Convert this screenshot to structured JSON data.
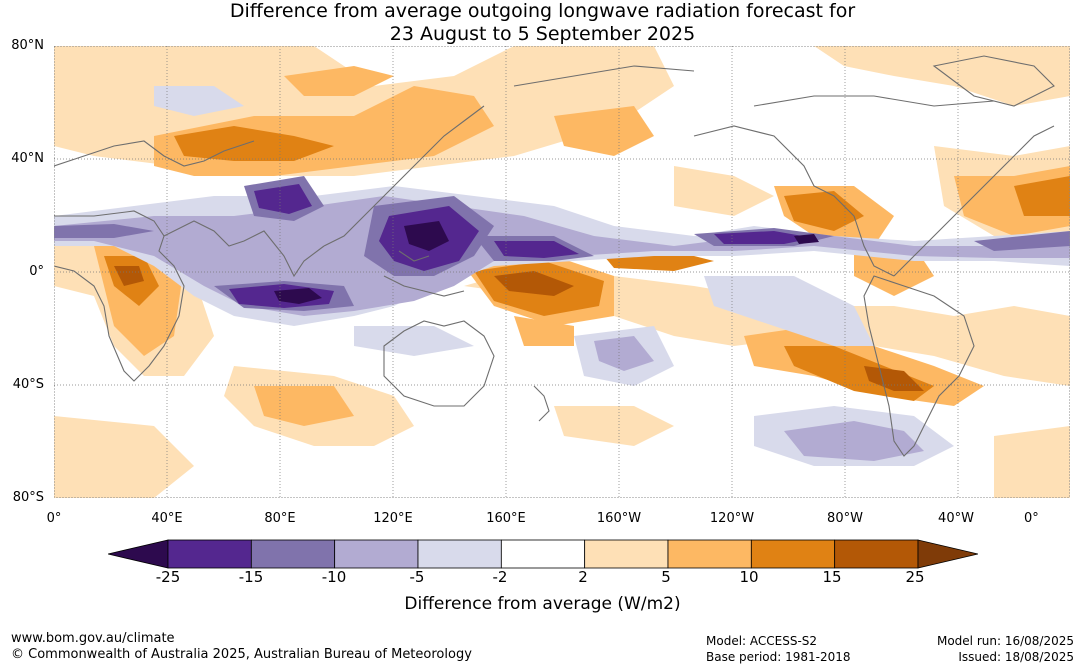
{
  "title": {
    "line1": "Difference from average outgoing longwave radiation forecast for",
    "line2": "23 August to 5 September 2025"
  },
  "axes": {
    "lat_labels": [
      "80°N",
      "40°N",
      "0°",
      "40°S",
      "80°S"
    ],
    "lon_labels": [
      "0°",
      "40°E",
      "80°E",
      "120°E",
      "160°E",
      "160°W",
      "120°W",
      "80°W",
      "40°W",
      "0°"
    ]
  },
  "colorbar": {
    "title": "Difference from average (W/m2)",
    "ticks": [
      "-25",
      "-15",
      "-10",
      "-5",
      "-2",
      "2",
      "5",
      "10",
      "15",
      "25"
    ],
    "colors": [
      "#2d0a4e",
      "#54278f",
      "#8073ac",
      "#b2abd2",
      "#d8daeb",
      "#ffffff",
      "#fee0b6",
      "#fdb863",
      "#e08214",
      "#b35806",
      "#7f3b08"
    ]
  },
  "footer": {
    "website": "www.bom.gov.au/climate",
    "copyright": "© Commonwealth of Australia 2025, Australian Bureau of Meteorology",
    "model": "Model: ACCESS-S2",
    "base_period": "Base period: 1981-2018",
    "model_run": "Model run: 16/08/2025",
    "issued": "Issued: 18/08/2025"
  }
}
